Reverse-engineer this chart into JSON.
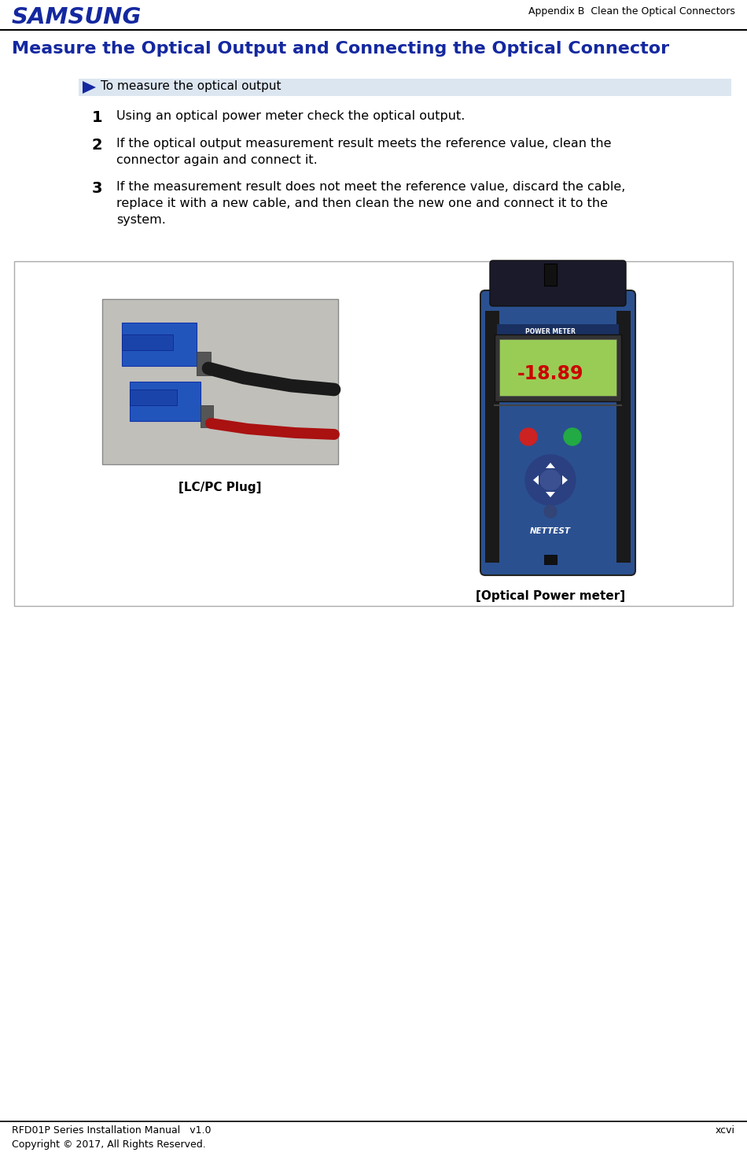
{
  "page_title": "Appendix B  Clean the Optical Connectors",
  "section_title": "Measure the Optical Output and Connecting the Optical Connector",
  "header_bar_text": "To measure the optical output",
  "step1_num": "1",
  "step1_text": "Using an optical power meter check the optical output.",
  "step2_num": "2",
  "step2_text": "If the optical output measurement result meets the reference value, clean the\nconnector again and connect it.",
  "step3_num": "3",
  "step3_text": "If the measurement result does not meet the reference value, discard the cable,\nreplace it with a new cable, and then clean the new one and connect it to the\nsystem.",
  "caption_left": "[LC/PC Plug]",
  "caption_right": "[Optical Power meter]",
  "footer_left": "RFD01P Series Installation Manual   v1.0",
  "footer_right": "xcvi",
  "footer_copy": "Copyright © 2017, All Rights Reserved.",
  "samsung_color": "#1428A0",
  "title_color": "#1428A0",
  "header_bar_bg": "#dce6f1",
  "fig_bg": "#ffffff",
  "image_box_border": "#aaaaaa",
  "plug_img_bg": "#b8b8b0",
  "meter_body_color": "#3366aa",
  "meter_dark": "#222222",
  "meter_screen_bg": "#99cc55",
  "meter_readout": "#cc0000",
  "meter_btn_red": "#cc2222",
  "meter_btn_green": "#22aa44"
}
